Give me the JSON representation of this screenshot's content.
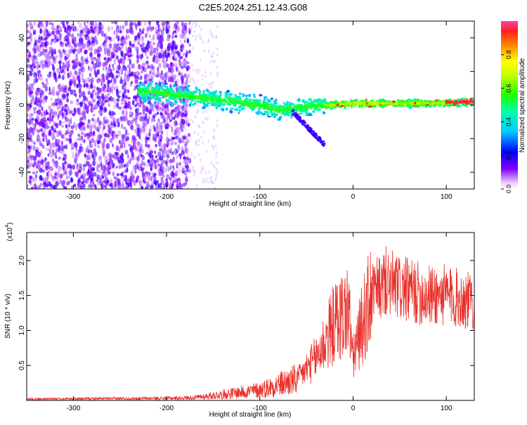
{
  "title": "C2E5.2024.251.12.43.G08",
  "chart_data": [
    {
      "type": "heatmap",
      "xlabel": "Height of straight line (km)",
      "ylabel": "Frequency (Hz)",
      "xlim": [
        -350,
        130
      ],
      "ylim": [
        -50,
        50
      ],
      "x_ticks": [
        -300,
        -200,
        -100,
        0,
        100
      ],
      "y_ticks": [
        -40,
        -20,
        0,
        20,
        40
      ],
      "colorbar": {
        "label": "Normalized spectral amplitude",
        "range": [
          0,
          1
        ],
        "ticks": [
          "0.0",
          "0.2",
          "0.4",
          "0.6",
          "0.8"
        ],
        "tick_values": [
          0.0,
          0.2,
          0.4,
          0.6,
          0.8
        ],
        "colormap": "rainbow (purple to red)"
      },
      "ridge": {
        "x": [
          -220,
          -190,
          -160,
          -130,
          -100,
          -80,
          -60,
          -40,
          -20,
          0,
          40,
          80,
          130
        ],
        "y": [
          8,
          6,
          4,
          2,
          0,
          -3,
          -2,
          0,
          0,
          1,
          1,
          1,
          2
        ]
      }
    },
    {
      "type": "line",
      "xlabel": "Height of straight line (km)",
      "ylabel": "SNR (10 * v/v)",
      "yscale_label": "(x10",
      "yscale_exp": "4",
      "xlim": [
        -350,
        130
      ],
      "ylim": [
        0,
        24000
      ],
      "x_ticks": [
        -300,
        -200,
        -100,
        0,
        100
      ],
      "y_ticks": [
        5000,
        10000,
        15000,
        20000
      ],
      "y_tick_labels": [
        "0.5",
        "1.0",
        "1.5",
        "2.0"
      ],
      "color": "#e8302a",
      "envelope": {
        "x": [
          -350,
          -200,
          -170,
          -150,
          -100,
          -60,
          -40,
          -20,
          -5,
          0,
          10,
          20,
          35,
          50,
          80,
          100,
          130
        ],
        "y": [
          200,
          300,
          400,
          700,
          1500,
          3000,
          6000,
          11000,
          13000,
          6000,
          11000,
          15000,
          17000,
          16000,
          15000,
          15000,
          14000
        ]
      }
    }
  ]
}
